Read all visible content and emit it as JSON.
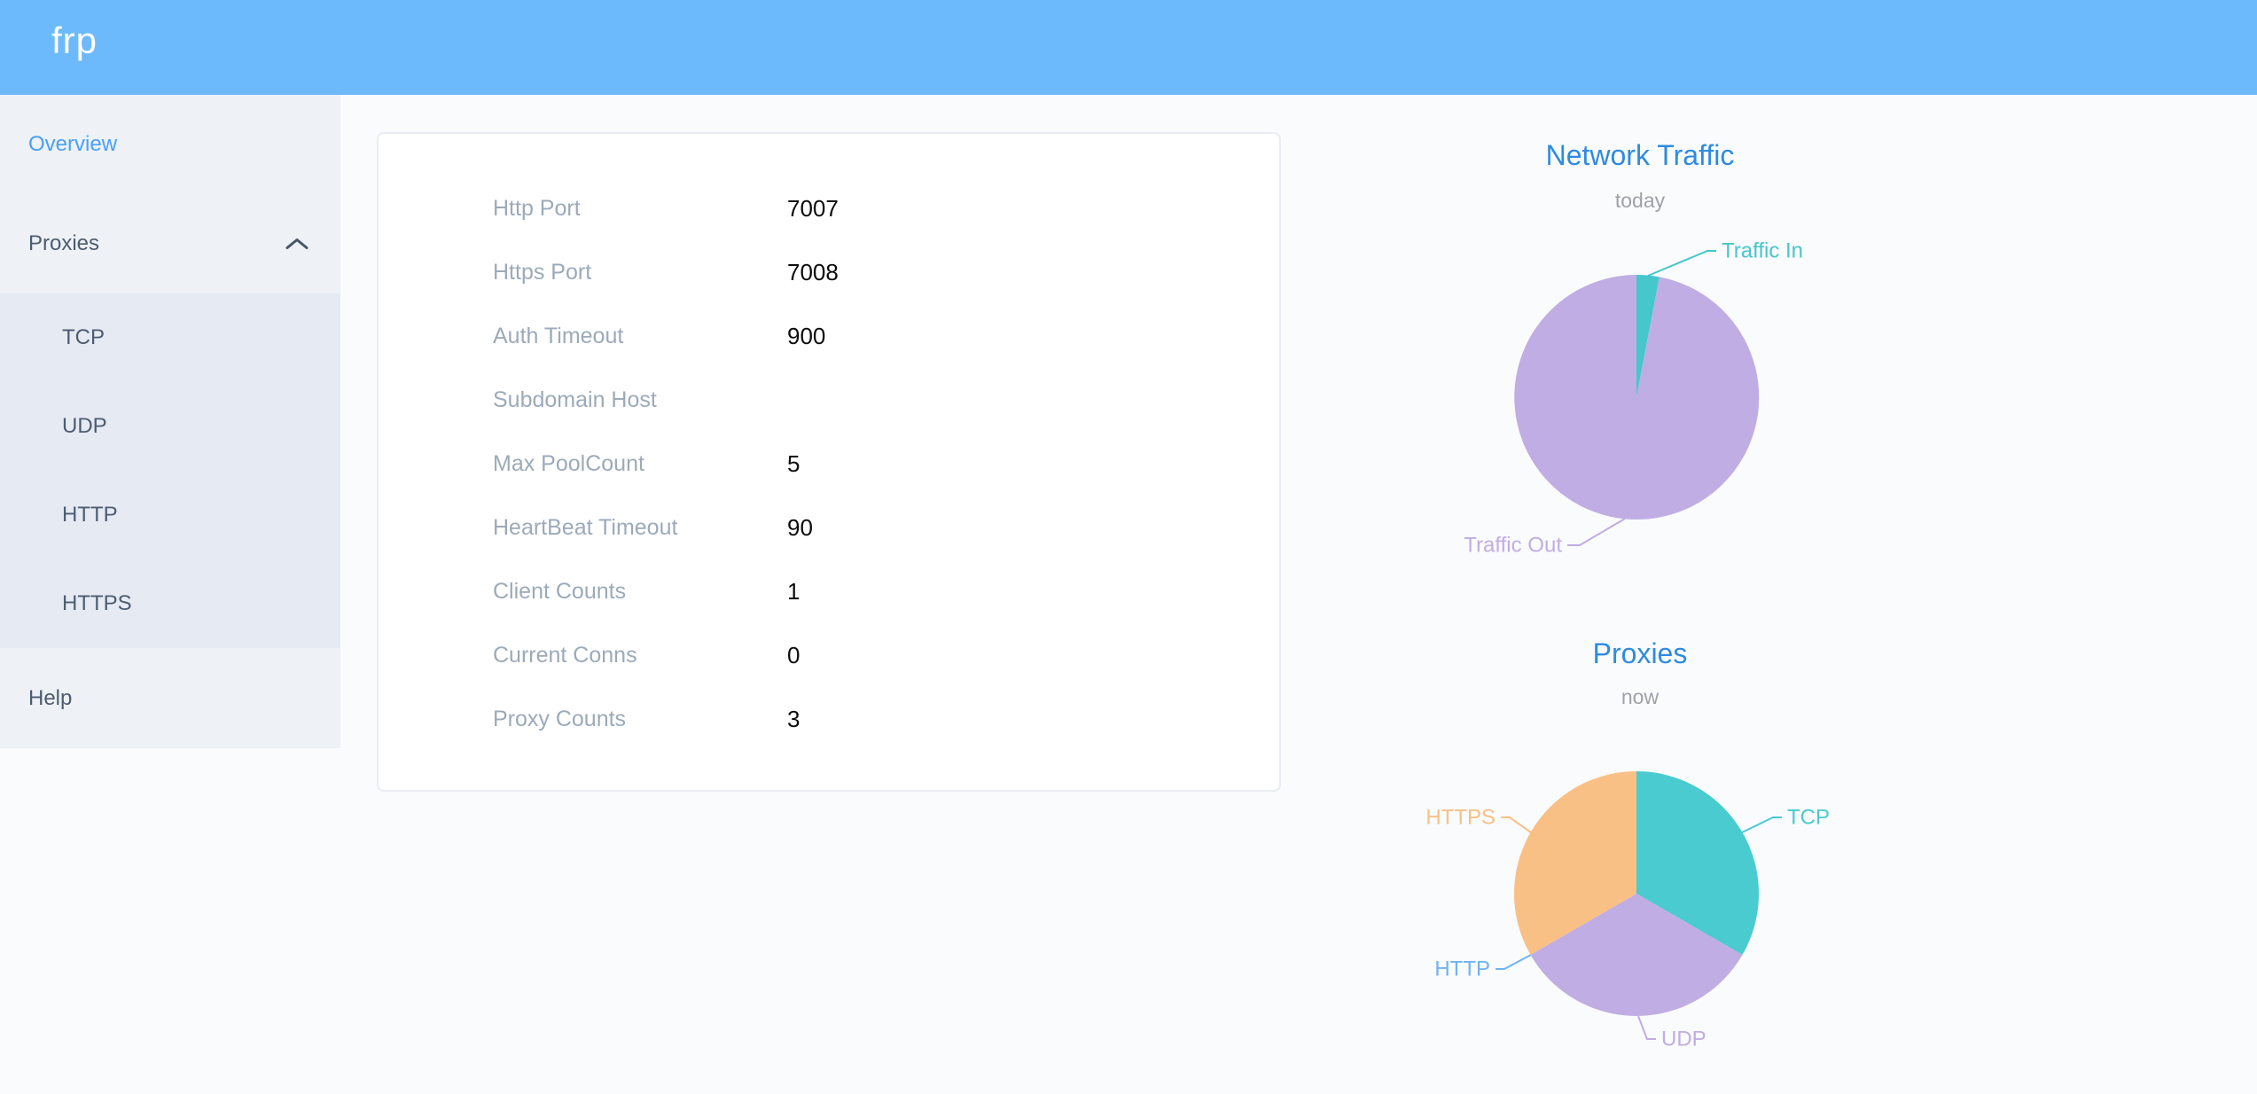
{
  "header": {
    "logo": "frp"
  },
  "sidebar": {
    "items": [
      {
        "label": "Overview",
        "type": "link",
        "active": true
      },
      {
        "label": "Proxies",
        "type": "group",
        "expanded": true
      },
      {
        "label": "TCP",
        "type": "sublink"
      },
      {
        "label": "UDP",
        "type": "sublink"
      },
      {
        "label": "HTTP",
        "type": "sublink"
      },
      {
        "label": "HTTPS",
        "type": "sublink"
      },
      {
        "label": "Help",
        "type": "link",
        "active": false
      }
    ]
  },
  "overview_panel": {
    "rows": [
      {
        "label": "Http Port",
        "value": "7007"
      },
      {
        "label": "Https Port",
        "value": "7008"
      },
      {
        "label": "Auth Timeout",
        "value": "900"
      },
      {
        "label": "Subdomain Host",
        "value": ""
      },
      {
        "label": "Max PoolCount",
        "value": "5"
      },
      {
        "label": "HeartBeat Timeout",
        "value": "90"
      },
      {
        "label": "Client Counts",
        "value": "1"
      },
      {
        "label": "Current Conns",
        "value": "0"
      },
      {
        "label": "Proxy Counts",
        "value": "3"
      }
    ]
  },
  "chart_data": [
    {
      "type": "pie",
      "title": "Network Traffic",
      "subtitle": "today",
      "legend_position": "callout-labels",
      "values_are": "percent_share_estimated_from_arc_angles",
      "slices": [
        {
          "name": "Traffic In",
          "value": 3,
          "color": "#45c7cb"
        },
        {
          "name": "Traffic Out",
          "value": 97,
          "color": "#c0ade3"
        }
      ]
    },
    {
      "type": "pie",
      "title": "Proxies",
      "subtitle": "now",
      "legend_position": "callout-labels",
      "values_are": "proxy_counts",
      "slices": [
        {
          "name": "TCP",
          "value": 1,
          "color": "#49cbd0"
        },
        {
          "name": "UDP",
          "value": 1,
          "color": "#c0ade3"
        },
        {
          "name": "HTTP",
          "value": 0,
          "color": "#6fb3f2"
        },
        {
          "name": "HTTPS",
          "value": 1,
          "color": "#f9c085"
        }
      ]
    }
  ],
  "colors": {
    "header_blue": "#6cbafc",
    "chart_title_blue": "#2e8be0",
    "active_link_blue": "#49a0f6",
    "sidebar_text": "#4d5c70",
    "panel_label_gray": "#9caab9",
    "teal": "#45c7cb",
    "purple": "#c0ade3",
    "orange": "#f9c085",
    "http_label_blue": "#6fb3f2"
  }
}
